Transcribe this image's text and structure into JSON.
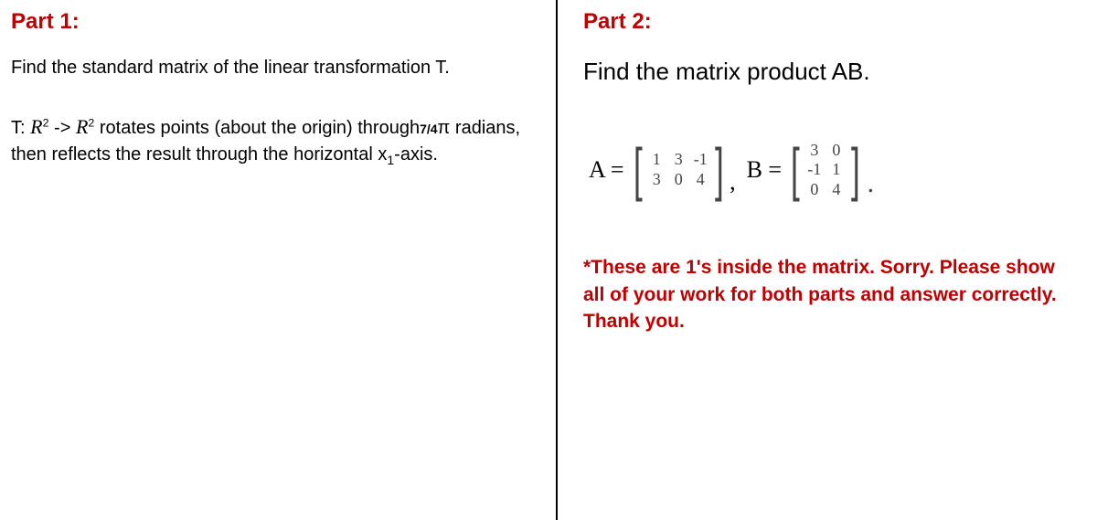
{
  "colors": {
    "accent": "#c00000",
    "text": "#000000",
    "muted": "#444444",
    "background": "#ffffff"
  },
  "part1": {
    "label": "Part 1:",
    "line1": "Find the standard matrix of the linear transformation T.",
    "desc_prefix": "T: ",
    "R_script": "R",
    "exp": "2",
    "arrow": " -> ",
    "desc_mid1": " rotates points (about the origin) through",
    "fraction": "7/4",
    "pi": "π",
    "desc_mid2": " radians, then reflects the result through the horizontal x",
    "sub1": "1",
    "desc_end": "-axis."
  },
  "part2": {
    "label": "Part 2:",
    "line1": "Find the matrix product AB.",
    "A_label": "A = ",
    "A_rows": [
      [
        "1",
        "3",
        "-1"
      ],
      [
        "3",
        "0",
        "4"
      ]
    ],
    "B_label": "B = ",
    "B_rows": [
      [
        "3",
        "0"
      ],
      [
        "-1",
        "1"
      ],
      [
        "0",
        "4"
      ]
    ],
    "comma": ",",
    "period": ".",
    "note": "*These are 1's inside the matrix. Sorry. Please show all of your work for both parts and answer correctly. Thank you."
  }
}
